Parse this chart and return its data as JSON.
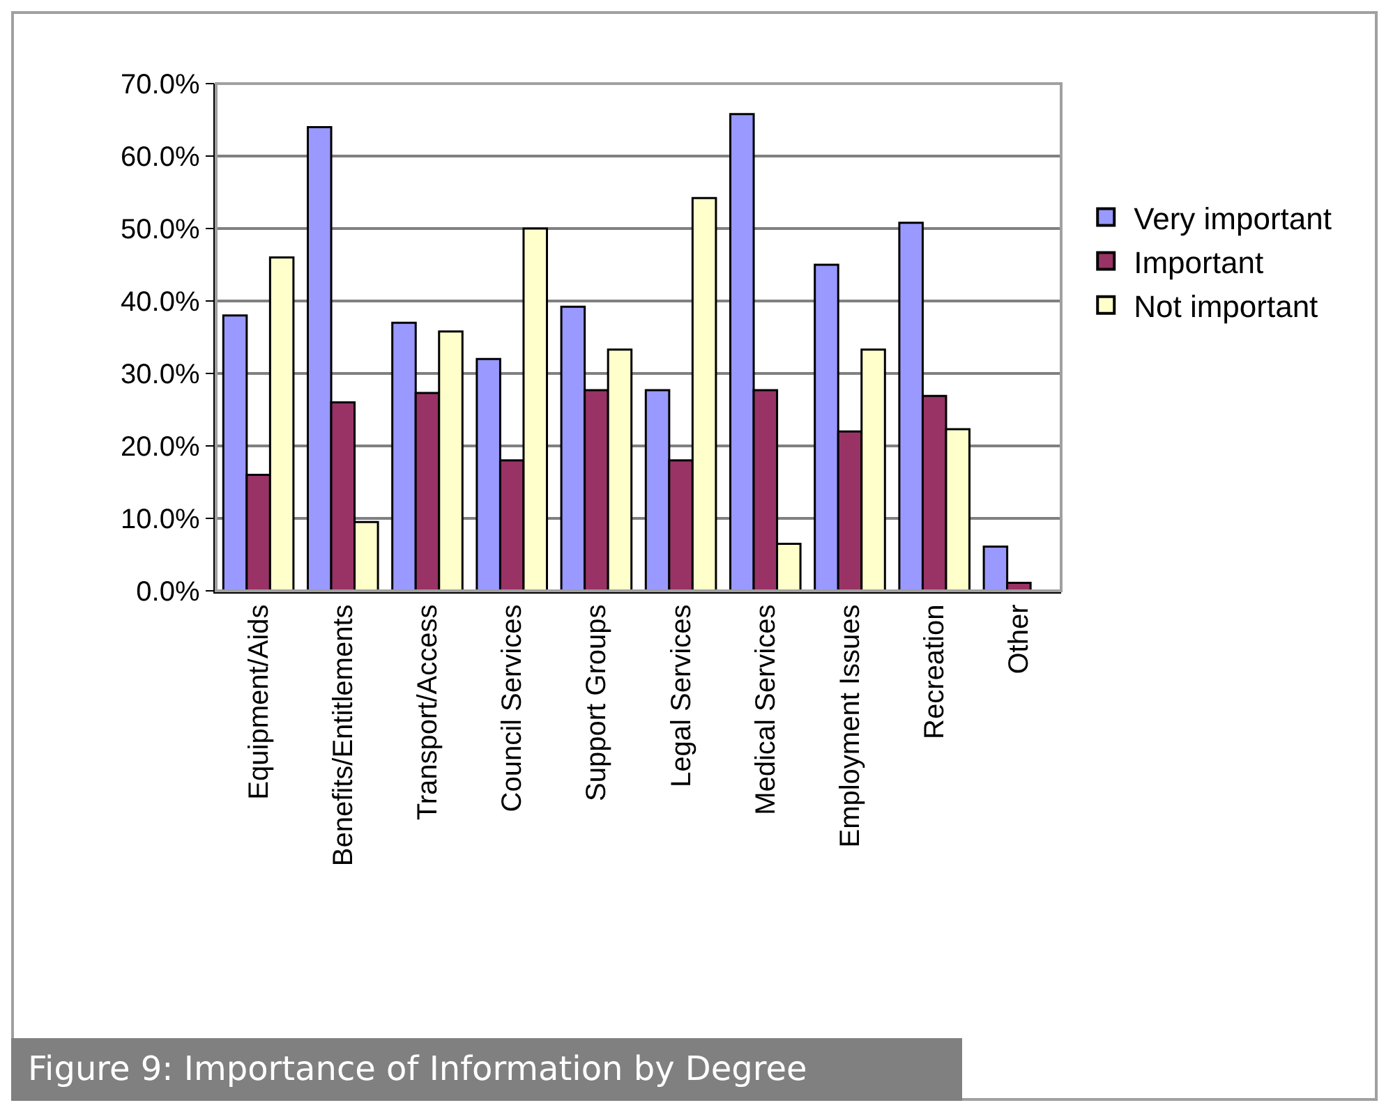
{
  "chart_data": {
    "type": "bar",
    "categories": [
      "Equipment/Aids",
      "Benefits/Entitlements",
      "Transport/Access",
      "Council Services",
      "Support Groups",
      "Legal Services",
      "Medical Services",
      "Employment Issues",
      "Recreation",
      "Other"
    ],
    "series": [
      {
        "name": "Very important",
        "color": "#9999ff",
        "values": [
          38.0,
          64.0,
          37.0,
          32.0,
          39.2,
          27.7,
          65.8,
          45.0,
          50.8,
          6.1
        ]
      },
      {
        "name": "Important",
        "color": "#993366",
        "values": [
          16.0,
          26.0,
          27.3,
          18.0,
          27.7,
          18.0,
          27.7,
          22.0,
          26.9,
          1.1
        ]
      },
      {
        "name": "Not important",
        "color": "#ffffcc",
        "values": [
          46.0,
          9.5,
          35.8,
          50.0,
          33.3,
          54.2,
          6.5,
          33.3,
          22.3,
          null
        ]
      }
    ],
    "ylim": [
      0,
      70
    ],
    "yticks": [
      {
        "value": 0,
        "label": "0.0%"
      },
      {
        "value": 10,
        "label": "10.0%"
      },
      {
        "value": 20,
        "label": "20.0%"
      },
      {
        "value": 30,
        "label": "30.0%"
      },
      {
        "value": 40,
        "label": "40.0%"
      },
      {
        "value": 50,
        "label": "50.0%"
      },
      {
        "value": 60,
        "label": "60.0%"
      },
      {
        "value": 70,
        "label": "70.0%"
      }
    ],
    "grid": "y",
    "legend": "right",
    "annotations": [
      "Figure 9: Importance of Information by Degree"
    ]
  }
}
